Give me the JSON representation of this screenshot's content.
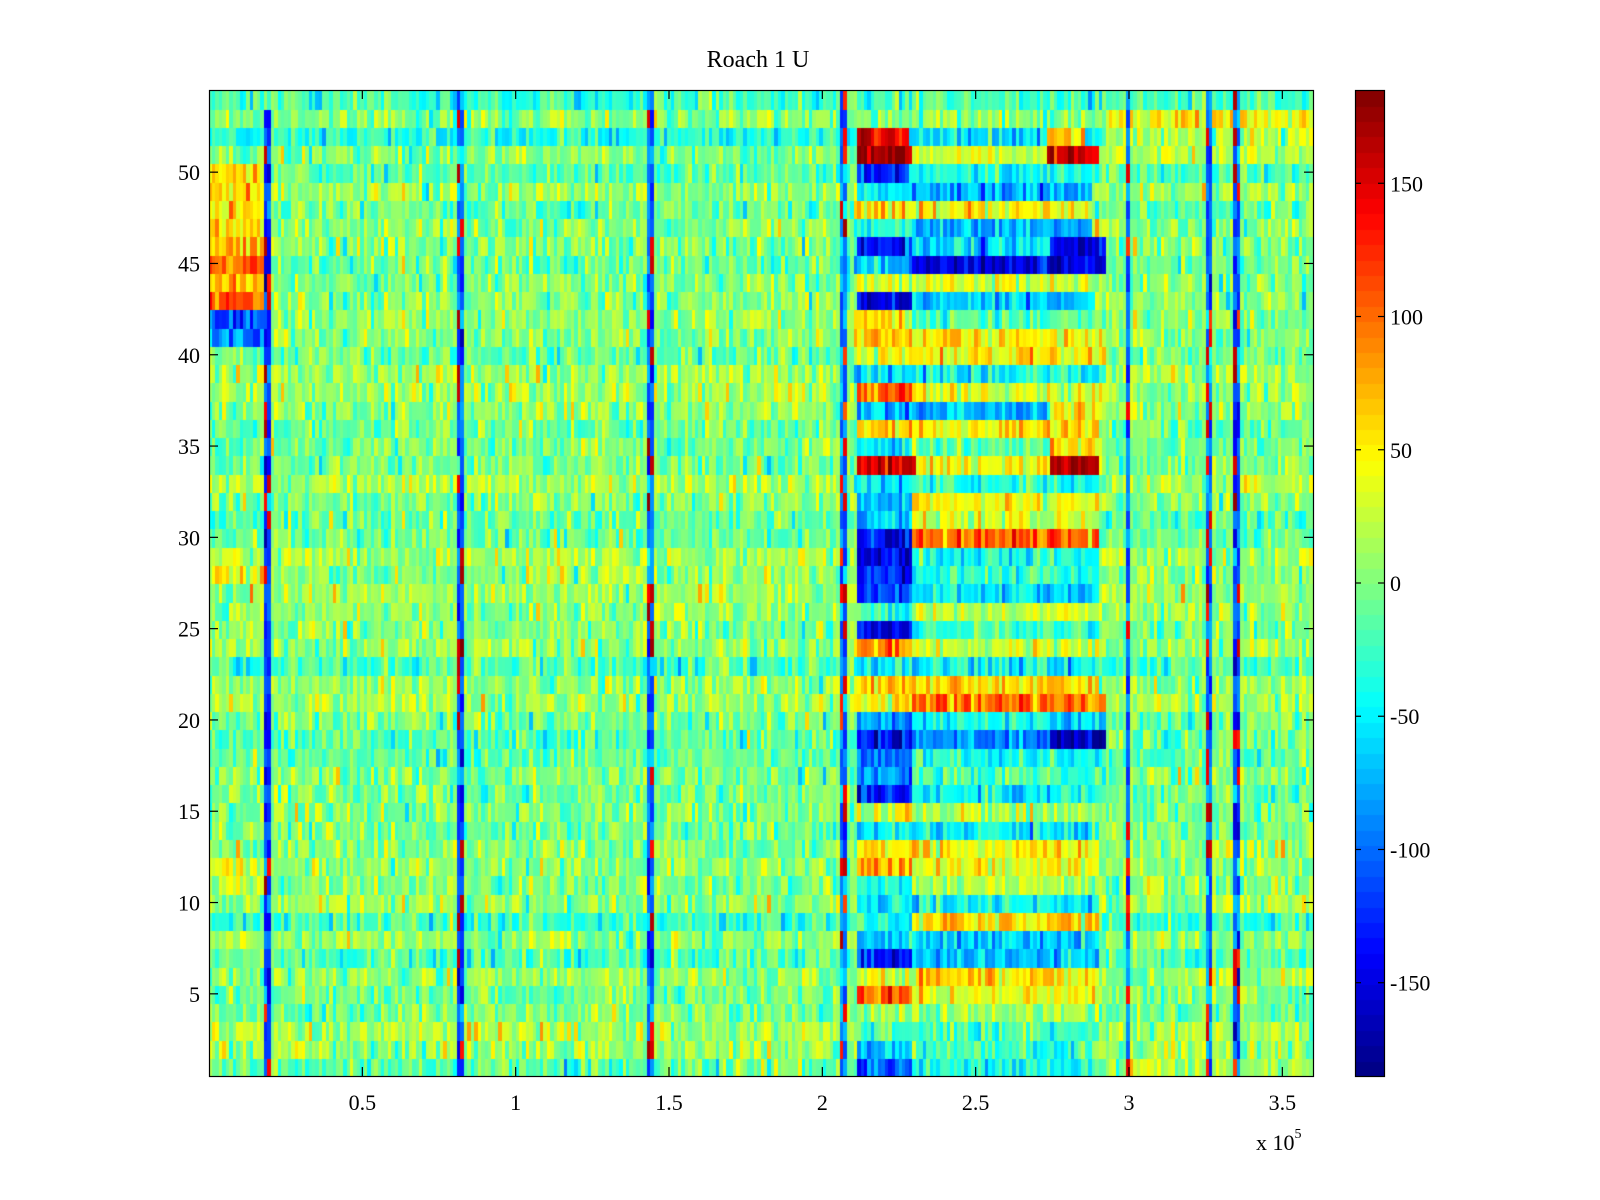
{
  "chart_data": {
    "type": "heatmap",
    "title": "Roach 1 U",
    "xlabel": "",
    "ylabel": "",
    "x_multiplier_label": {
      "base": "x 10",
      "exponent": "5"
    },
    "xlim": [
      0,
      3.6
    ],
    "ylim": [
      0.5,
      54.5
    ],
    "x_ticks": [
      0.5,
      1,
      1.5,
      2,
      2.5,
      3,
      3.5
    ],
    "x_tick_labels": [
      "0.5",
      "1",
      "1.5",
      "2",
      "2.5",
      "3",
      "3.5"
    ],
    "y_ticks": [
      5,
      10,
      15,
      20,
      25,
      30,
      35,
      40,
      45,
      50
    ],
    "y_tick_labels": [
      "5",
      "10",
      "15",
      "20",
      "25",
      "30",
      "35",
      "40",
      "45",
      "50"
    ],
    "n_rows": 54,
    "n_cols": 320,
    "seed": 20240517,
    "colormap": "jet",
    "clim": [
      -185,
      185
    ],
    "colorbar": {
      "ticks": [
        -150,
        -100,
        -50,
        0,
        50,
        100,
        150
      ],
      "tick_labels": [
        "-150",
        "-100",
        "-50",
        "0",
        "50",
        "100",
        "150"
      ]
    },
    "noise_std": 22,
    "background_mean": -5,
    "vertical_stripes": [
      {
        "x": 0.19,
        "rows": [
          1,
          53
        ],
        "value": -120,
        "alt_value": 150
      },
      {
        "x": 0.82,
        "rows": [
          1,
          54
        ],
        "value": -110,
        "alt_value": 160
      },
      {
        "x": 1.44,
        "rows": [
          1,
          54
        ],
        "value": -100,
        "alt_value": 160
      },
      {
        "x": 2.07,
        "rows": [
          1,
          54
        ],
        "value": -90,
        "alt_value": 140
      },
      {
        "x": 3.0,
        "rows": [
          1,
          54
        ],
        "value": -100,
        "alt_value": 140
      },
      {
        "x": 3.26,
        "rows": [
          1,
          54
        ],
        "value": -100,
        "alt_value": 150
      },
      {
        "x": 3.35,
        "rows": [
          1,
          54
        ],
        "value": -110,
        "alt_value": 150
      }
    ],
    "left_block": {
      "x_range": [
        0.0,
        0.19
      ],
      "row_values": {
        "43": 110,
        "44": 70,
        "45": 80,
        "46": 70,
        "47": 60,
        "48": 60,
        "49": 65,
        "50": 60,
        "42": -110,
        "41": -90,
        "12": 30,
        "11": 30,
        "29": 30,
        "28": 40
      }
    },
    "event_region": {
      "x_range": [
        2.1,
        2.92
      ],
      "row_patterns": [
        {
          "row": 52,
          "segments": [
            [
              2.12,
              2.28,
              150
            ],
            [
              2.28,
              2.73,
              -60
            ],
            [
              2.73,
              2.86,
              60
            ]
          ]
        },
        {
          "row": 51,
          "segments": [
            [
              2.12,
              2.3,
              170
            ],
            [
              2.3,
              2.73,
              30
            ],
            [
              2.73,
              2.9,
              150
            ]
          ]
        },
        {
          "row": 50,
          "segments": [
            [
              2.12,
              2.28,
              -130
            ],
            [
              2.28,
              2.9,
              -40
            ]
          ]
        },
        {
          "row": 49,
          "segments": [
            [
              2.12,
              2.3,
              -50
            ],
            [
              2.3,
              2.88,
              -80
            ]
          ]
        },
        {
          "row": 48,
          "segments": [
            [
              2.1,
              2.3,
              60
            ],
            [
              2.3,
              2.88,
              40
            ]
          ]
        },
        {
          "row": 47,
          "segments": [
            [
              2.1,
              2.3,
              -40
            ],
            [
              2.3,
              2.88,
              -70
            ]
          ]
        },
        {
          "row": 46,
          "segments": [
            [
              2.11,
              2.3,
              -140
            ],
            [
              2.3,
              2.74,
              -60
            ],
            [
              2.74,
              2.92,
              -160
            ]
          ]
        },
        {
          "row": 45,
          "segments": [
            [
              2.1,
              2.3,
              -70
            ],
            [
              2.3,
              2.92,
              -150
            ]
          ]
        },
        {
          "row": 44,
          "segments": [
            [
              2.1,
              2.3,
              30
            ],
            [
              2.3,
              2.92,
              30
            ]
          ]
        },
        {
          "row": 43,
          "segments": [
            [
              2.12,
              2.29,
              -150
            ],
            [
              2.29,
              2.88,
              -60
            ]
          ]
        },
        {
          "row": 42,
          "segments": [
            [
              2.1,
              2.3,
              50
            ],
            [
              2.3,
              2.92,
              -20
            ]
          ]
        },
        {
          "row": 41,
          "segments": [
            [
              2.1,
              2.3,
              70
            ],
            [
              2.3,
              2.92,
              50
            ]
          ]
        },
        {
          "row": 40,
          "segments": [
            [
              2.1,
              2.3,
              40
            ],
            [
              2.3,
              2.92,
              45
            ]
          ]
        },
        {
          "row": 39,
          "segments": [
            [
              2.1,
              2.3,
              -50
            ],
            [
              2.3,
              2.92,
              -40
            ]
          ]
        },
        {
          "row": 38,
          "segments": [
            [
              2.12,
              2.3,
              110
            ],
            [
              2.3,
              2.92,
              40
            ]
          ]
        },
        {
          "row": 37,
          "segments": [
            [
              2.12,
              2.3,
              -80
            ],
            [
              2.3,
              2.74,
              -70
            ],
            [
              2.74,
              2.92,
              40
            ]
          ]
        },
        {
          "row": 36,
          "segments": [
            [
              2.12,
              2.3,
              60
            ],
            [
              2.3,
              2.9,
              50
            ]
          ]
        },
        {
          "row": 35,
          "segments": [
            [
              2.12,
              2.3,
              -60
            ],
            [
              2.3,
              2.74,
              -20
            ],
            [
              2.74,
              2.9,
              70
            ]
          ]
        },
        {
          "row": 34,
          "segments": [
            [
              2.12,
              2.31,
              160
            ],
            [
              2.31,
              2.74,
              40
            ],
            [
              2.74,
              2.9,
              160
            ]
          ]
        },
        {
          "row": 33,
          "segments": [
            [
              2.1,
              2.3,
              -50
            ],
            [
              2.3,
              2.9,
              -30
            ]
          ]
        },
        {
          "row": 32,
          "segments": [
            [
              2.12,
              2.3,
              -70
            ],
            [
              2.3,
              2.9,
              40
            ]
          ]
        },
        {
          "row": 31,
          "segments": [
            [
              2.12,
              2.3,
              -60
            ],
            [
              2.3,
              2.9,
              30
            ]
          ]
        },
        {
          "row": 30,
          "segments": [
            [
              2.12,
              2.3,
              -140
            ],
            [
              2.3,
              2.9,
              100
            ]
          ]
        },
        {
          "row": 29,
          "segments": [
            [
              2.12,
              2.3,
              -150
            ],
            [
              2.3,
              2.9,
              -40
            ]
          ]
        },
        {
          "row": 28,
          "segments": [
            [
              2.12,
              2.3,
              -130
            ],
            [
              2.3,
              2.9,
              -30
            ]
          ]
        },
        {
          "row": 27,
          "segments": [
            [
              2.12,
              2.3,
              -120
            ],
            [
              2.3,
              2.9,
              -60
            ]
          ]
        },
        {
          "row": 26,
          "segments": [
            [
              2.12,
              2.3,
              -40
            ],
            [
              2.3,
              2.9,
              30
            ]
          ]
        },
        {
          "row": 25,
          "segments": [
            [
              2.12,
              2.3,
              -140
            ],
            [
              2.3,
              2.9,
              -30
            ]
          ]
        },
        {
          "row": 24,
          "segments": [
            [
              2.12,
              2.3,
              80
            ],
            [
              2.3,
              2.9,
              20
            ]
          ]
        },
        {
          "row": 23,
          "segments": [
            [
              2.1,
              2.3,
              -40
            ],
            [
              2.3,
              2.9,
              -50
            ]
          ]
        },
        {
          "row": 22,
          "segments": [
            [
              2.1,
              2.3,
              60
            ],
            [
              2.3,
              2.9,
              60
            ]
          ]
        },
        {
          "row": 21,
          "segments": [
            [
              2.1,
              2.3,
              50
            ],
            [
              2.3,
              2.92,
              90
            ]
          ]
        },
        {
          "row": 20,
          "segments": [
            [
              2.12,
              2.3,
              -80
            ],
            [
              2.3,
              2.74,
              -40
            ],
            [
              2.74,
              2.92,
              -60
            ]
          ]
        },
        {
          "row": 19,
          "segments": [
            [
              2.12,
              2.3,
              -140
            ],
            [
              2.3,
              2.74,
              -90
            ],
            [
              2.74,
              2.92,
              -160
            ]
          ]
        },
        {
          "row": 18,
          "segments": [
            [
              2.12,
              2.3,
              -100
            ],
            [
              2.3,
              2.92,
              -40
            ]
          ]
        },
        {
          "row": 17,
          "segments": [
            [
              2.12,
              2.3,
              -90
            ],
            [
              2.3,
              2.9,
              -20
            ]
          ]
        },
        {
          "row": 16,
          "segments": [
            [
              2.12,
              2.3,
              -130
            ],
            [
              2.3,
              2.9,
              -50
            ]
          ]
        },
        {
          "row": 15,
          "segments": [
            [
              2.12,
              2.3,
              30
            ],
            [
              2.3,
              2.9,
              20
            ]
          ]
        },
        {
          "row": 14,
          "segments": [
            [
              2.12,
              2.3,
              -50
            ],
            [
              2.3,
              2.9,
              -50
            ]
          ]
        },
        {
          "row": 13,
          "segments": [
            [
              2.12,
              2.3,
              50
            ],
            [
              2.3,
              2.9,
              50
            ]
          ]
        },
        {
          "row": 12,
          "segments": [
            [
              2.12,
              2.3,
              80
            ],
            [
              2.3,
              2.9,
              40
            ]
          ]
        },
        {
          "row": 11,
          "segments": [
            [
              2.12,
              2.3,
              -30
            ],
            [
              2.3,
              2.9,
              20
            ]
          ]
        },
        {
          "row": 10,
          "segments": [
            [
              2.12,
              2.3,
              -60
            ],
            [
              2.3,
              2.9,
              -40
            ]
          ]
        },
        {
          "row": 9,
          "segments": [
            [
              2.12,
              2.3,
              -40
            ],
            [
              2.3,
              2.9,
              60
            ]
          ]
        },
        {
          "row": 8,
          "segments": [
            [
              2.12,
              2.3,
              -60
            ],
            [
              2.3,
              2.9,
              -60
            ]
          ]
        },
        {
          "row": 7,
          "segments": [
            [
              2.12,
              2.3,
              -130
            ],
            [
              2.3,
              2.9,
              -70
            ]
          ]
        },
        {
          "row": 6,
          "segments": [
            [
              2.12,
              2.3,
              30
            ],
            [
              2.3,
              2.9,
              60
            ]
          ]
        },
        {
          "row": 5,
          "segments": [
            [
              2.12,
              2.3,
              100
            ],
            [
              2.3,
              2.9,
              40
            ]
          ]
        },
        {
          "row": 4,
          "segments": [
            [
              2.12,
              2.3,
              20
            ],
            [
              2.3,
              2.9,
              10
            ]
          ]
        },
        {
          "row": 3,
          "segments": [
            [
              2.12,
              2.3,
              -30
            ],
            [
              2.3,
              2.9,
              -20
            ]
          ]
        },
        {
          "row": 2,
          "segments": [
            [
              2.12,
              2.3,
              -60
            ],
            [
              2.3,
              2.9,
              -30
            ]
          ]
        },
        {
          "row": 1,
          "segments": [
            [
              2.12,
              2.3,
              -110
            ],
            [
              2.3,
              2.9,
              -40
            ]
          ]
        }
      ]
    },
    "right_region_rows": {
      "53": 40,
      "52": 20,
      "51": 20,
      "1": 20
    }
  }
}
